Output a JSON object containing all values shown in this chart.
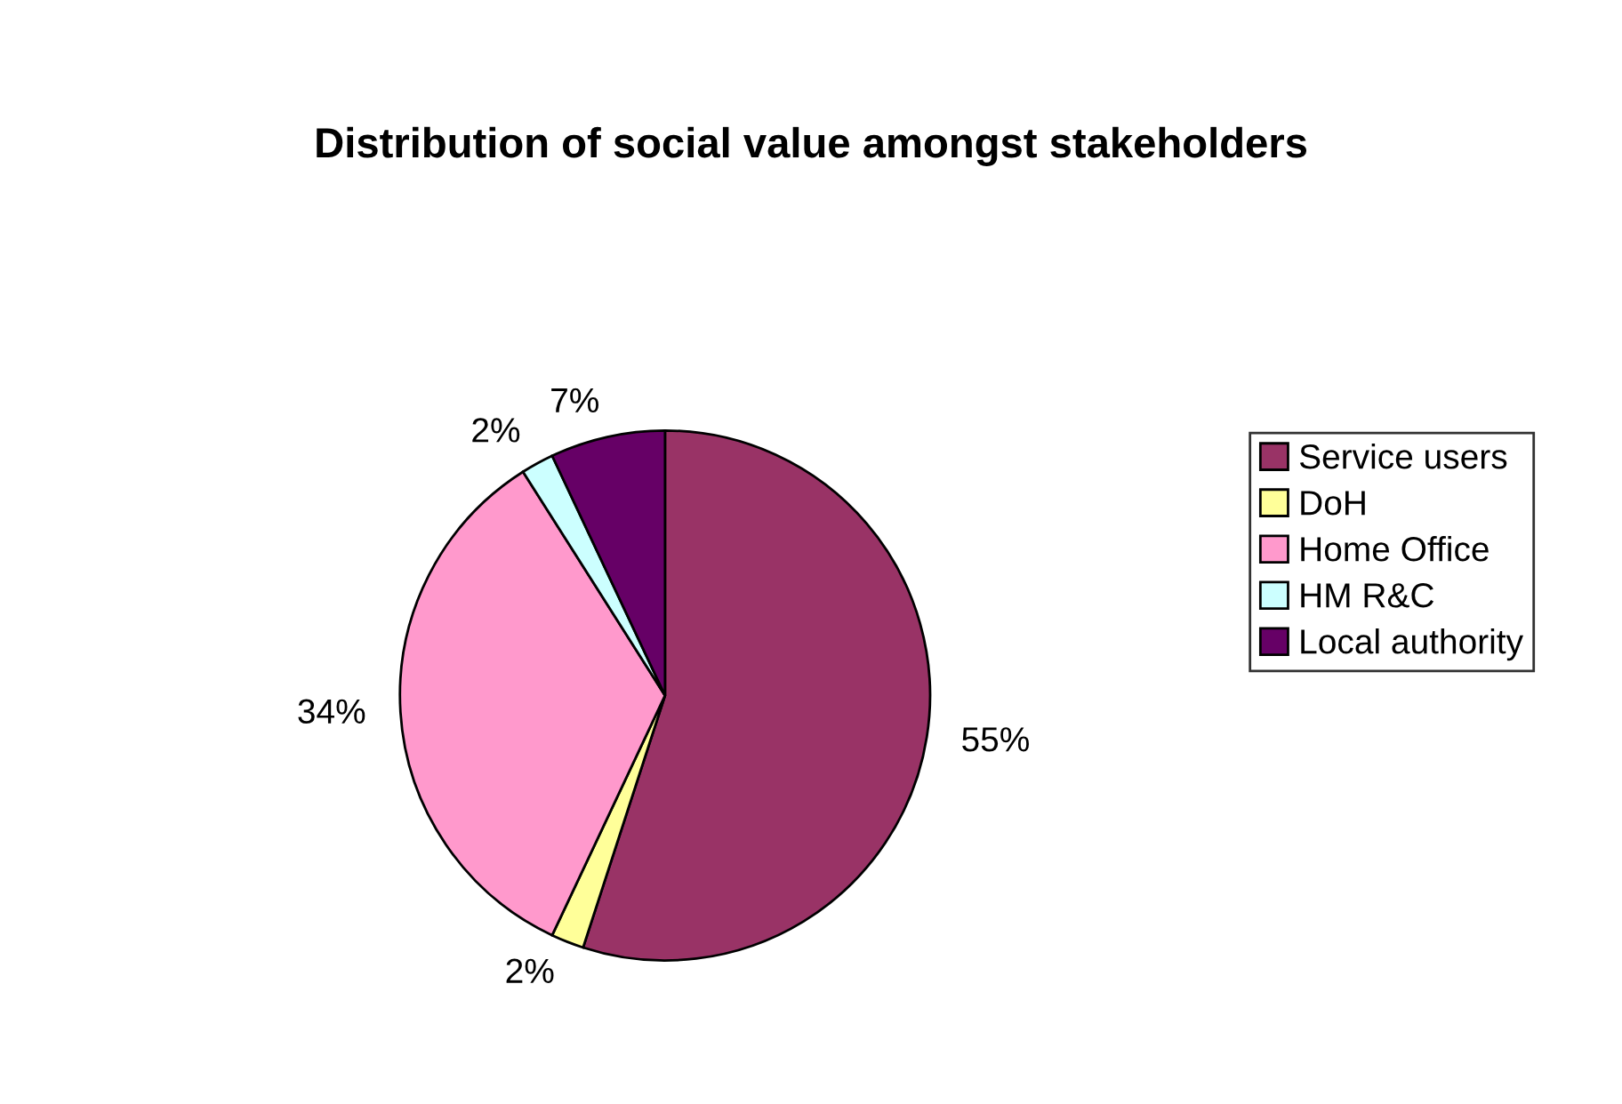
{
  "chart_data": {
    "type": "pie",
    "title": "Distribution of social value amongst stakeholders",
    "categories": [
      "Service users",
      "DoH",
      "Home Office",
      "HM R&C",
      "Local authority"
    ],
    "values": [
      55,
      2,
      34,
      2,
      7
    ],
    "value_labels": [
      "55%",
      "2%",
      "34%",
      "2%",
      "7%"
    ],
    "colors": [
      "#993366",
      "#ffff99",
      "#ff99cc",
      "#ccffff",
      "#660066"
    ],
    "legend": "right"
  }
}
